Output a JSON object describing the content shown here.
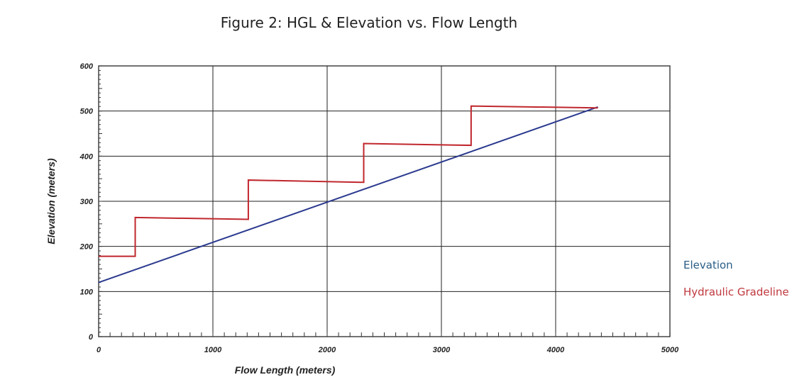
{
  "chart_data": {
    "type": "line",
    "title": "Figure 2: HGL & Elevation vs. Flow Length",
    "xlabel": "Flow Length (meters)",
    "ylabel": "Elevation (meters)",
    "xlim": [
      0,
      5000
    ],
    "ylim": [
      0,
      600
    ],
    "xticks": [
      "0",
      "1000",
      "2000",
      "3000",
      "4000",
      "5000"
    ],
    "yticks": [
      "0",
      "100",
      "200",
      "300",
      "400",
      "500",
      "600"
    ],
    "grid": true,
    "legend_position": "right",
    "series": [
      {
        "name": "Elevation",
        "color": "#2b3a8f",
        "x": [
          0,
          4370
        ],
        "y": [
          120,
          509
        ]
      },
      {
        "name": "Hydraulic Gradeline",
        "color": "#c0272d",
        "x": [
          0,
          320,
          320,
          1310,
          1310,
          2320,
          2320,
          3260,
          3260,
          4370
        ],
        "y": [
          178,
          178,
          264,
          260,
          347,
          342,
          428,
          424,
          511,
          507
        ]
      }
    ],
    "legend_colors": {
      "Elevation": "#2a5d86",
      "Hydraulic Gradeline": "#c0383e"
    }
  }
}
